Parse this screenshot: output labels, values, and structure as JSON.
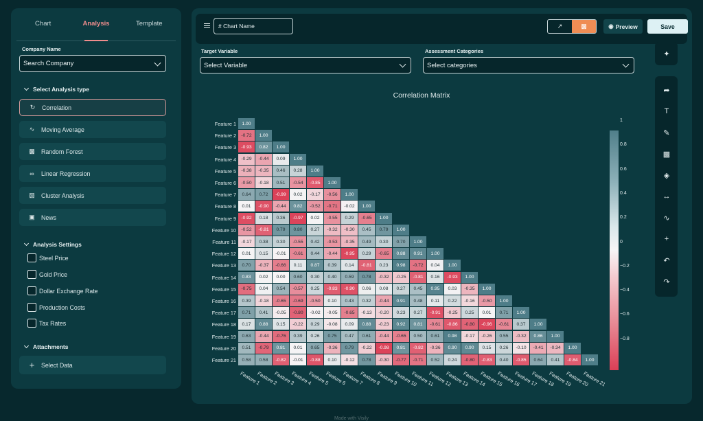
{
  "left": {
    "tabs": [
      "Chart",
      "Analysis",
      "Template"
    ],
    "company_label": "Company Name",
    "company_placeholder": "Search Company",
    "analysis_type_label": "Select Analysis type",
    "analysis_items": [
      {
        "label": "Correlation",
        "icon": "refresh-icon"
      },
      {
        "label": "Moving Average",
        "icon": "trend-icon"
      },
      {
        "label": "Random Forest",
        "icon": "tree-chart-icon"
      },
      {
        "label": "Linear Regression",
        "icon": "link-icon"
      },
      {
        "label": "Cluster Analysis",
        "icon": "cluster-chart-icon"
      },
      {
        "label": "News",
        "icon": "news-icon"
      }
    ],
    "settings_label": "Analysis Settings",
    "settings": [
      "Steel Price",
      "Gold Price",
      "Dollar Exchange Rate",
      "Production Costs",
      "Tax Rates"
    ],
    "attachments_label": "Attachments",
    "select_data": "Select Data"
  },
  "topbar": {
    "chart_name": "# Chart Name",
    "preview": "Preview",
    "save": "Save"
  },
  "target_label": "Target Variable",
  "target_placeholder": "Select Variable",
  "assessment_label": "Assessment Categories",
  "assessment_placeholder": "Select categories",
  "chart_data": {
    "type": "heatmap",
    "title": "Correlation Matrix",
    "labels": [
      "Feature 1",
      "Feature 2",
      "Feature 3",
      "Feature 4",
      "Feature 5",
      "Feature 6",
      "Feature 7",
      "Feature 8",
      "Feature 9",
      "Feature 10",
      "Feature 11",
      "Feature 12",
      "Feature 13",
      "Feature 14",
      "Feature 15",
      "Feature 16",
      "Feature 17",
      "Feature 18",
      "Feature 19",
      "Feature 20",
      "Feature 21"
    ],
    "values": [
      [
        1.0
      ],
      [
        -0.72,
        1.0
      ],
      [
        -0.93,
        0.82,
        1.0
      ],
      [
        -0.29,
        -0.44,
        0.09,
        1.0
      ],
      [
        -0.38,
        -0.35,
        0.46,
        0.28,
        1.0
      ],
      [
        -0.5,
        -0.18,
        0.51,
        -0.54,
        -0.85,
        1.0
      ],
      [
        0.64,
        0.72,
        -0.99,
        0.02,
        -0.17,
        -0.56,
        1.0
      ],
      [
        0.01,
        -0.9,
        -0.44,
        0.82,
        -0.52,
        -0.71,
        -0.02,
        1.0
      ],
      [
        -0.92,
        0.18,
        0.36,
        -0.97,
        0.02,
        -0.55,
        0.29,
        -0.65,
        1.0
      ],
      [
        -0.52,
        -0.81,
        0.79,
        0.8,
        0.27,
        -0.32,
        -0.3,
        0.45,
        0.79,
        1.0
      ],
      [
        -0.17,
        0.38,
        0.3,
        -0.55,
        0.42,
        -0.53,
        -0.35,
        0.49,
        0.3,
        0.7,
        1.0
      ],
      [
        0.01,
        0.15,
        -0.01,
        -0.61,
        0.44,
        -0.44,
        -0.95,
        0.29,
        -0.65,
        0.88,
        0.91,
        1.0
      ],
      [
        0.7,
        -0.37,
        -0.66,
        0.11,
        0.87,
        0.39,
        0.14,
        -0.81,
        0.23,
        0.98,
        -0.72,
        0.04,
        1.0
      ],
      [
        0.83,
        0.02,
        0.0,
        0.6,
        0.3,
        0.4,
        0.59,
        0.78,
        -0.32,
        -0.25,
        -0.81,
        0.16,
        -0.93,
        1.0
      ],
      [
        -0.75,
        0.04,
        0.54,
        -0.57,
        0.25,
        -0.83,
        -0.9,
        0.06,
        0.08,
        0.27,
        0.45,
        0.95,
        0.03,
        -0.35,
        1.0
      ],
      [
        0.39,
        -0.18,
        -0.65,
        -0.69,
        -0.5,
        0.1,
        0.43,
        0.32,
        -0.44,
        0.91,
        0.48,
        0.11,
        0.22,
        -0.16,
        -0.5,
        1.0
      ],
      [
        0.71,
        0.41,
        -0.05,
        -0.8,
        -0.02,
        -0.05,
        -0.65,
        -0.13,
        -0.2,
        0.23,
        0.27,
        -0.91,
        -0.25,
        0.25,
        0.01,
        0.71,
        1.0
      ],
      [
        0.17,
        0.88,
        0.15,
        -0.22,
        0.29,
        -0.08,
        0.09,
        0.88,
        -0.23,
        0.92,
        0.81,
        -0.61,
        -0.86,
        -0.8,
        -0.96,
        -0.61,
        0.37,
        1.0
      ],
      [
        0.63,
        -0.44,
        -0.76,
        0.39,
        0.26,
        0.75,
        0.47,
        0.61,
        -0.44,
        -0.65,
        0.5,
        0.61,
        0.98,
        -0.17,
        -0.26,
        0.55,
        -0.32,
        0.86,
        1.0
      ],
      [
        0.51,
        -0.79,
        0.81,
        0.01,
        0.65,
        -0.36,
        0.79,
        -0.22,
        -0.98,
        0.81,
        -0.82,
        -0.36,
        0.9,
        0.9,
        0.15,
        0.26,
        -0.1,
        -0.41,
        -0.34,
        1.0
      ],
      [
        0.58,
        0.58,
        -0.82,
        -0.01,
        -0.88,
        0.1,
        -0.12,
        0.78,
        -0.3,
        -0.77,
        -0.71,
        0.52,
        0.24,
        -0.8,
        -0.83,
        0.4,
        -0.85,
        0.64,
        0.41,
        -0.84,
        1.0
      ]
    ],
    "colorbar_ticks": [
      "1",
      "0.8",
      "0.6",
      "0.4",
      "0.2",
      "0",
      "−0.2",
      "−0.4",
      "−0.6",
      "−0.8"
    ],
    "vmin": -1,
    "vmax": 1,
    "colors": {
      "positive": "#4e7d88",
      "zero": "#f7f5f6",
      "negative": "#db3f56"
    }
  },
  "footer": "Made with Visily"
}
